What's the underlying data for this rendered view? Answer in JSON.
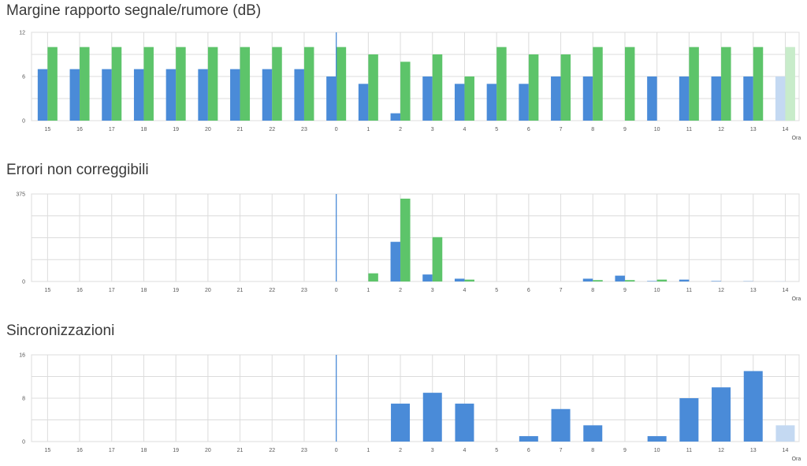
{
  "hours": [
    "15",
    "16",
    "17",
    "18",
    "19",
    "20",
    "21",
    "22",
    "23",
    "0",
    "1",
    "2",
    "3",
    "4",
    "5",
    "6",
    "7",
    "8",
    "9",
    "10",
    "11",
    "12",
    "13",
    "14"
  ],
  "colors": {
    "blue": "#4a8bd8",
    "green": "#5dc46a",
    "blue_light": "#c4d9f2",
    "green_light": "#c8ecca",
    "grid": "#dcdcdc",
    "axis": "#999999",
    "marker": "#4a8bd8"
  },
  "charts": [
    {
      "title": "Margine rapporto segnale/rumore (dB)",
      "chart_data": {
        "type": "bar",
        "title": "Margine rapporto segnale/rumore (dB)",
        "xlabel": "Ora",
        "ylabel": "",
        "ylim": [
          0,
          12
        ],
        "yticks": [
          "0",
          "6",
          "12"
        ],
        "categories": [
          "15",
          "16",
          "17",
          "18",
          "19",
          "20",
          "21",
          "22",
          "23",
          "0",
          "1",
          "2",
          "3",
          "4",
          "5",
          "6",
          "7",
          "8",
          "9",
          "10",
          "11",
          "12",
          "13",
          "14"
        ],
        "series": [
          {
            "values": [
              7,
              7,
              7,
              7,
              7,
              7,
              7,
              7,
              7,
              6,
              5,
              1,
              6,
              5,
              5,
              5,
              6,
              6,
              0,
              6,
              6,
              6,
              6,
              6
            ]
          },
          {
            "values": [
              10,
              10,
              10,
              10,
              10,
              10,
              10,
              10,
              10,
              10,
              9,
              8,
              9,
              6,
              10,
              9,
              9,
              10,
              10,
              0,
              10,
              10,
              10,
              10
            ]
          }
        ]
      }
    },
    {
      "title": "Errori non correggibili",
      "chart_data": {
        "type": "bar",
        "title": "Errori non correggibili",
        "xlabel": "Ora",
        "ylabel": "",
        "ylim": [
          0,
          375
        ],
        "yticks": [
          "0",
          "375"
        ],
        "categories": [
          "15",
          "16",
          "17",
          "18",
          "19",
          "20",
          "21",
          "22",
          "23",
          "0",
          "1",
          "2",
          "3",
          "4",
          "5",
          "6",
          "7",
          "8",
          "9",
          "10",
          "11",
          "12",
          "13",
          "14"
        ],
        "series": [
          {
            "values": [
              0,
              0,
              0,
              0,
              0,
              0,
              0,
              0,
              0,
              0,
              0,
              170,
              30,
              12,
              0,
              0,
              0,
              12,
              25,
              2,
              8,
              2,
              1,
              1
            ]
          },
          {
            "values": [
              0,
              0,
              0,
              0,
              0,
              0,
              0,
              0,
              0,
              0,
              35,
              355,
              190,
              8,
              0,
              0,
              0,
              6,
              6,
              8,
              0,
              0,
              0,
              0
            ]
          }
        ]
      }
    },
    {
      "title": "Sincronizzazioni",
      "chart_data": {
        "type": "bar",
        "title": "Sincronizzazioni",
        "xlabel": "Ora",
        "ylabel": "",
        "ylim": [
          0,
          16
        ],
        "yticks": [
          "0",
          "8",
          "16"
        ],
        "categories": [
          "15",
          "16",
          "17",
          "18",
          "19",
          "20",
          "21",
          "22",
          "23",
          "0",
          "1",
          "2",
          "3",
          "4",
          "5",
          "6",
          "7",
          "8",
          "9",
          "10",
          "11",
          "12",
          "13",
          "14"
        ],
        "series": [
          {
            "values": [
              0,
              0,
              0,
              0,
              0,
              0,
              0,
              0,
              0,
              0,
              0,
              7,
              9,
              7,
              0,
              1,
              6,
              3,
              0,
              1,
              8,
              10,
              13,
              3
            ]
          }
        ]
      }
    }
  ]
}
